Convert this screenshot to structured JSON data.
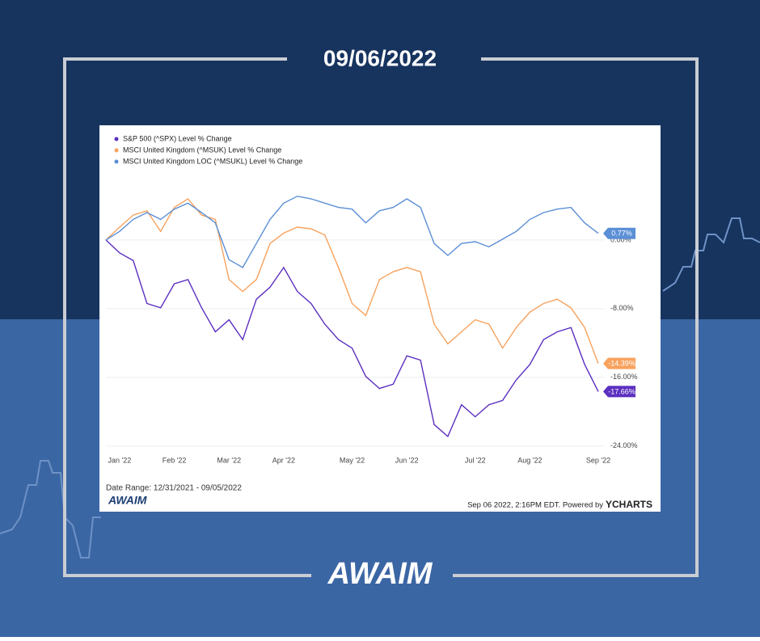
{
  "header": {
    "date": "09/06/2022"
  },
  "footer_logo": "AWAIM",
  "chart_data": {
    "type": "line",
    "categories": [
      null,
      "Jan '22",
      null,
      null,
      null,
      "Feb '22",
      null,
      null,
      null,
      "Mar '22",
      null,
      null,
      null,
      "Apr '22",
      null,
      null,
      null,
      null,
      "May '22",
      null,
      null,
      null,
      "Jun '22",
      null,
      null,
      null,
      null,
      "Jul '22",
      null,
      null,
      null,
      "Aug '22",
      null,
      null,
      null,
      null,
      "Sep '22"
    ],
    "series": [
      {
        "name": "S&P 500 (^SPX) Level % Change",
        "color": "#5b2fc0",
        "values": [
          0,
          -1.5,
          -2.4,
          -7.4,
          -7.9,
          -5.1,
          -4.6,
          -7.9,
          -10.7,
          -9.3,
          -11.6,
          -6.9,
          -5.5,
          -3.2,
          -6,
          -7.4,
          -9.8,
          -11.6,
          -12.6,
          -15.9,
          -17.3,
          -16.8,
          -13.5,
          -14,
          -21.5,
          -22.9,
          -19.2,
          -20.6,
          -19.2,
          -18.7,
          -16.3,
          -14.5,
          -11.6,
          -10.7,
          -10.2,
          -14.5,
          -17.66
        ],
        "value_labels": [
          null,
          null,
          null,
          null,
          null,
          null,
          null,
          null,
          null,
          null,
          null,
          null,
          null,
          null,
          null,
          null,
          null,
          null,
          null,
          null,
          null,
          null,
          null,
          null,
          null,
          null,
          null,
          null,
          null,
          null,
          null,
          null,
          null,
          null,
          null,
          null,
          "-17.66%"
        ]
      },
      {
        "name": "MSCI United Kingdom (^MSUK) Level % Change",
        "color": "#f7a25e",
        "values": [
          0,
          1.5,
          2.9,
          3.4,
          1,
          3.8,
          4.8,
          2.9,
          2.4,
          -4.6,
          -6,
          -4.6,
          -0.4,
          0.8,
          1.5,
          1.3,
          0.6,
          -3.2,
          -7.4,
          -8.8,
          -4.6,
          -3.7,
          -3.2,
          -3.7,
          -9.8,
          -12.1,
          -10.7,
          -9.3,
          -9.8,
          -12.6,
          -10.2,
          -8.4,
          -7.4,
          -6.9,
          -7.9,
          -10.2,
          -14.39
        ],
        "value_labels": [
          null,
          null,
          null,
          null,
          null,
          null,
          null,
          null,
          null,
          null,
          null,
          null,
          null,
          null,
          null,
          null,
          null,
          null,
          null,
          null,
          null,
          null,
          null,
          null,
          null,
          null,
          null,
          null,
          null,
          null,
          null,
          null,
          null,
          null,
          null,
          null,
          "-14.39%"
        ]
      },
      {
        "name": "MSCI United Kingdom LOC (^MSUKL) Level % Change",
        "color": "#5b8fd6",
        "values": [
          0,
          1,
          2.4,
          3.2,
          2.4,
          3.6,
          4.3,
          3.2,
          2,
          -2.3,
          -3.2,
          -0.4,
          2.4,
          4.3,
          5.1,
          4.8,
          4.3,
          3.8,
          3.6,
          2,
          3.4,
          3.8,
          4.8,
          3.8,
          -0.4,
          -1.8,
          -0.4,
          -0.2,
          -0.8,
          0.1,
          1,
          2.4,
          3.2,
          3.6,
          3.8,
          2,
          0.77
        ],
        "value_labels": [
          null,
          null,
          null,
          null,
          null,
          null,
          null,
          null,
          null,
          null,
          null,
          null,
          null,
          null,
          null,
          null,
          null,
          null,
          null,
          null,
          null,
          null,
          null,
          null,
          null,
          null,
          null,
          null,
          null,
          null,
          null,
          null,
          null,
          null,
          null,
          null,
          "0.77%"
        ]
      }
    ],
    "ylim": [
      -24.5,
      8
    ],
    "yticks": [
      {
        "value": -24,
        "label": "-24.00%"
      },
      {
        "value": -16,
        "label": "-16.00%"
      },
      {
        "value": -8,
        "label": "-8.00%"
      },
      {
        "value": 0,
        "label": "0.00%"
      }
    ],
    "grid": true,
    "legend": "top-left",
    "date_range": "Date Range: 12/31/2021 - 09/05/2022",
    "timestamp": "Sep 06 2022, 2:16PM EDT. Powered by",
    "source": "YCHARTS",
    "logo": "AWAIM"
  }
}
